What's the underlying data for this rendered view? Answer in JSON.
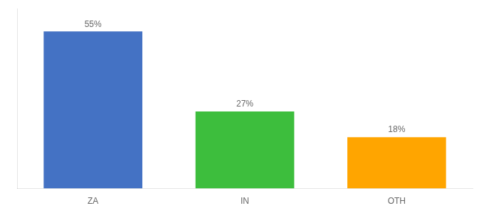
{
  "chart_data": {
    "type": "bar",
    "categories": [
      "ZA",
      "IN",
      "OTH"
    ],
    "values": [
      55,
      27,
      18
    ],
    "value_labels": [
      "55%",
      "27%",
      "18%"
    ],
    "colors": [
      "#4472C4",
      "#3DBE3D",
      "#FFA500"
    ],
    "ylim": [
      0,
      63
    ],
    "grid": false,
    "data_labels": true,
    "tick_labels": "x"
  }
}
